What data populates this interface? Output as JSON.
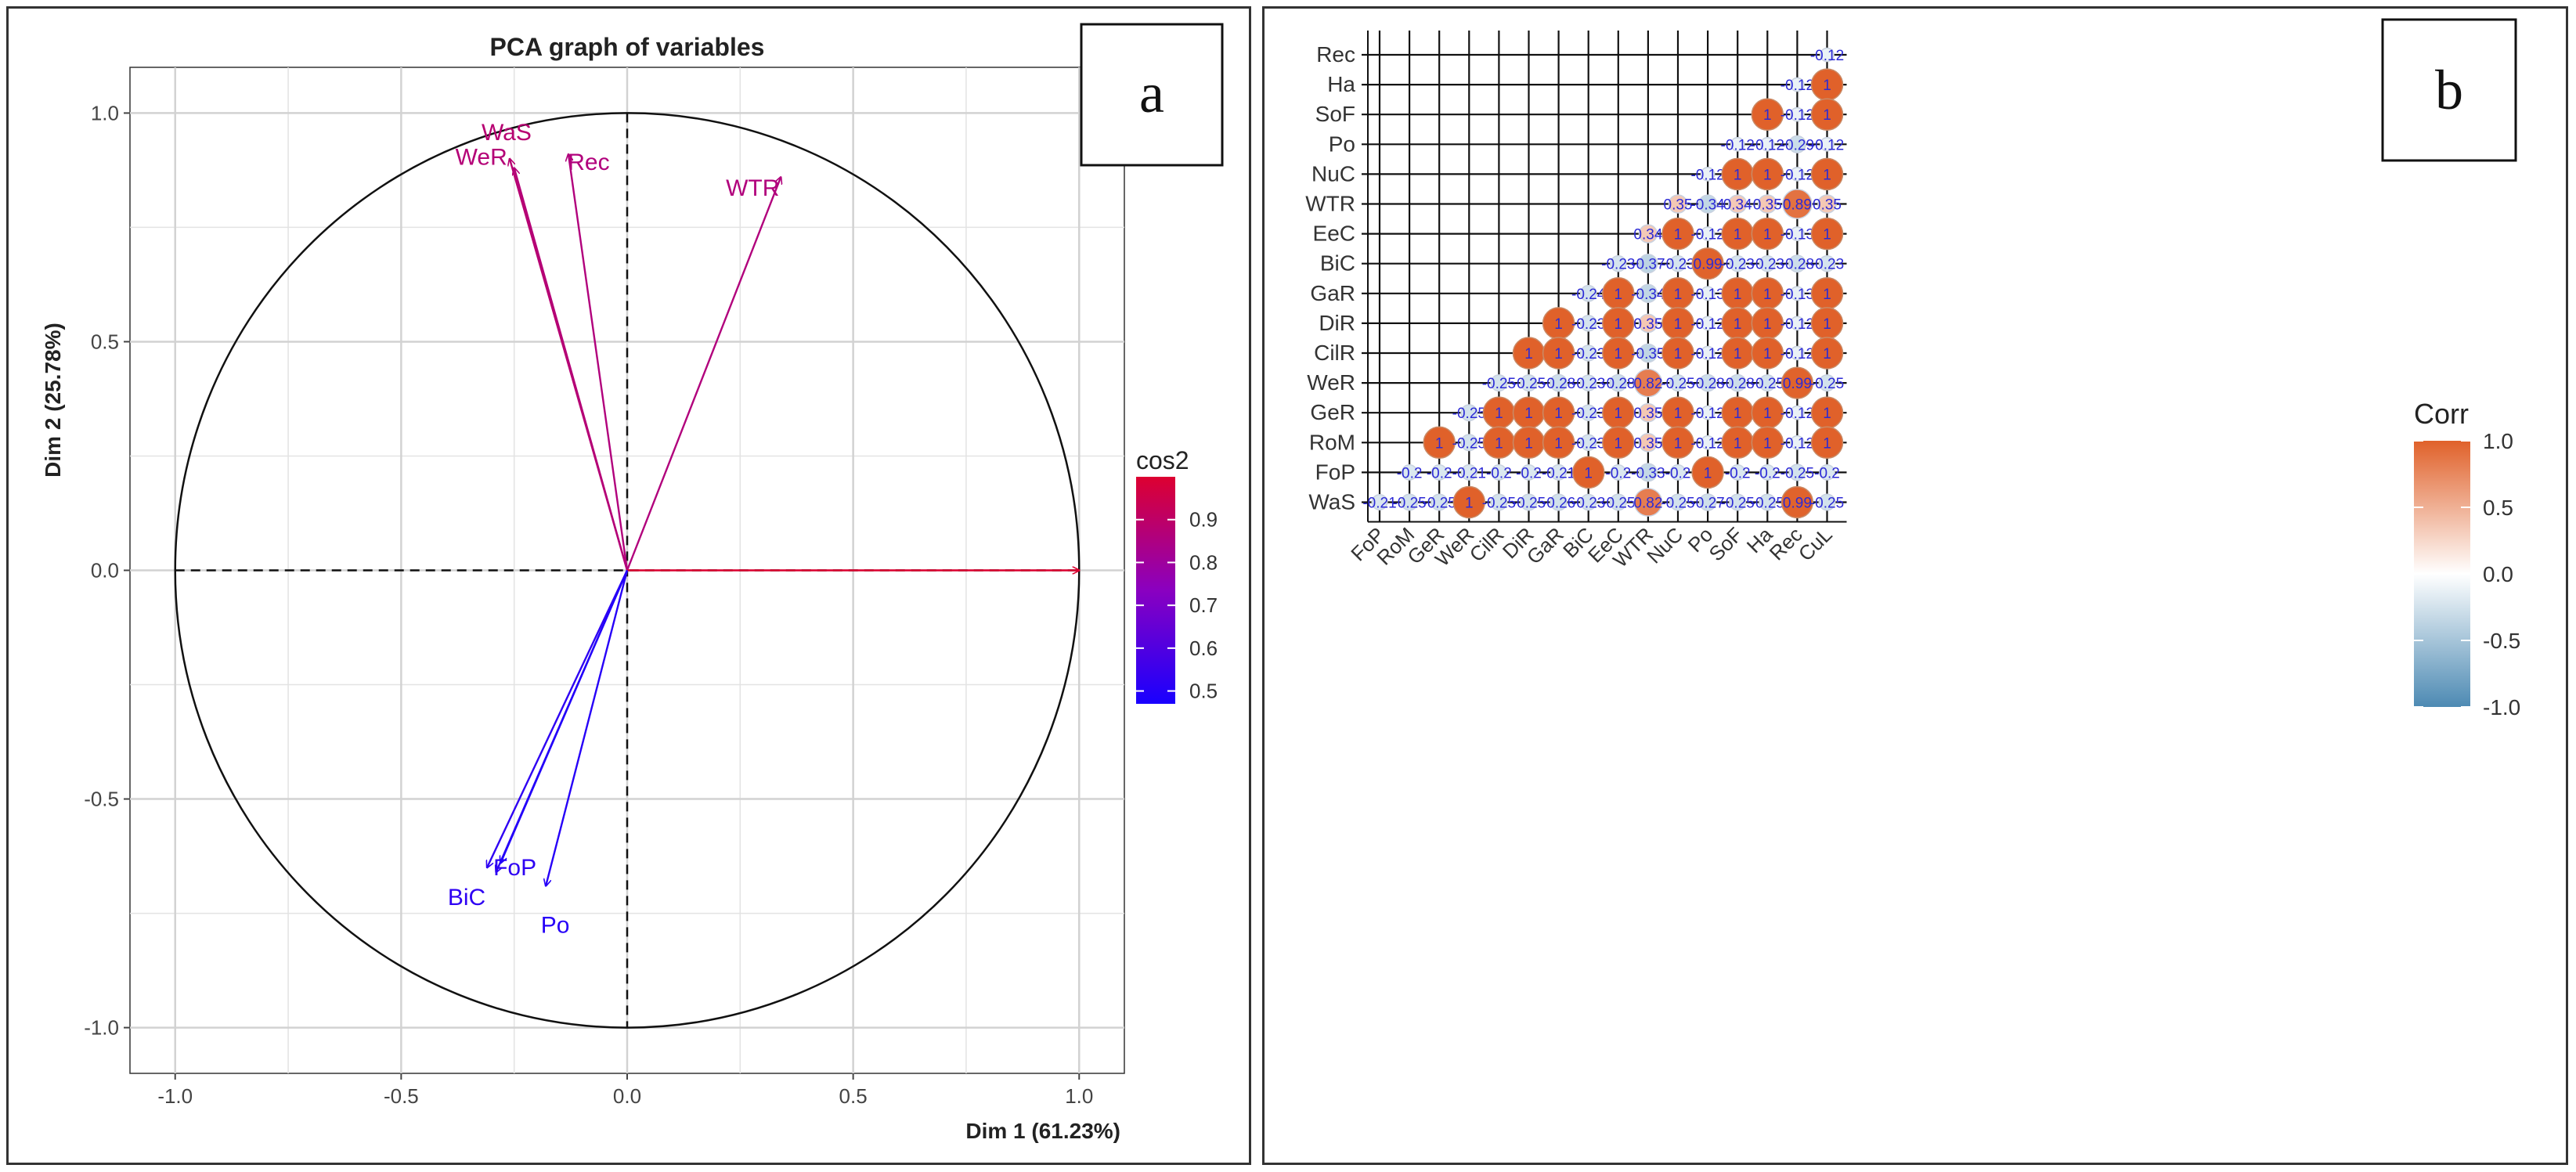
{
  "panels": {
    "a": {
      "label": "a"
    },
    "b": {
      "label": "b"
    }
  },
  "chart_data": [
    {
      "type": "scatter",
      "subtype": "pca-variables-correlation-circle",
      "title": "PCA graph of variables",
      "xlabel": "Dim 1 (61.23%)",
      "ylabel": "Dim 2 (25.78%)",
      "xlim": [
        -1.1,
        1.1
      ],
      "ylim": [
        -1.1,
        1.1
      ],
      "x_ticks": [
        -1.0,
        -0.5,
        0.0,
        0.5,
        1.0
      ],
      "y_ticks": [
        -1.0,
        -0.5,
        0.0,
        0.5,
        1.0
      ],
      "x_tick_labels": [
        "-1.0",
        "-0.5",
        "0.0",
        "0.5",
        "1.0"
      ],
      "y_tick_labels": [
        "-1.0",
        "-0.5",
        "0.0",
        "0.5",
        "1.0"
      ],
      "grid": true,
      "legend": {
        "title": "cos2",
        "position": "right",
        "range": [
          0.47,
          1.0
        ],
        "ticks": [
          0.5,
          0.6,
          0.7,
          0.8,
          0.9
        ],
        "tick_labels": [
          "0.5",
          "0.6",
          "0.7",
          "0.8",
          "0.9"
        ],
        "color_low": "#1900ff",
        "color_mid": "#8a00c0",
        "color_high": "#dd0030"
      },
      "vectors": [
        {
          "name": "WaS",
          "x": -0.26,
          "y": 0.9,
          "cos2": 0.88,
          "label": "WaS"
        },
        {
          "name": "WeR",
          "x": -0.25,
          "y": 0.88,
          "cos2": 0.87,
          "label": "WeR"
        },
        {
          "name": "Rec",
          "x": -0.13,
          "y": 0.91,
          "cos2": 0.86,
          "label": "Rec"
        },
        {
          "name": "WTR",
          "x": 0.34,
          "y": 0.86,
          "cos2": 0.86,
          "label": "WTR"
        },
        {
          "name": "Dim1 variables",
          "x": 1.0,
          "y": 0.0,
          "cos2": 1.0,
          "label": ""
        },
        {
          "name": "BiC",
          "x": -0.31,
          "y": -0.65,
          "cos2": 0.52,
          "label": "BiC"
        },
        {
          "name": "FoP",
          "x": -0.29,
          "y": -0.66,
          "cos2": 0.52,
          "label": "FoP"
        },
        {
          "name": "FoP2",
          "x": -0.28,
          "y": -0.64,
          "cos2": 0.49,
          "label": ""
        },
        {
          "name": "Po",
          "x": -0.18,
          "y": -0.69,
          "cos2": 0.5,
          "label": "Po"
        }
      ]
    },
    {
      "type": "heatmap",
      "subtype": "correlation-matrix-circles",
      "legend": {
        "title": "Corr",
        "position": "right",
        "ticks": [
          1.0,
          0.5,
          0.0,
          -0.5,
          -1.0
        ],
        "tick_labels": [
          "1.0",
          "0.5",
          "0.0",
          "-0.5",
          "-1.0"
        ],
        "color_pos": "#e0612a",
        "color_neutral": "#ffffff",
        "color_neg": "#4d8ab3"
      },
      "x_labels": [
        "FoP",
        "RoM",
        "GeR",
        "WeR",
        "CilR",
        "DiR",
        "GaR",
        "BiC",
        "EeC",
        "WTR",
        "NuC",
        "Po",
        "SoF",
        "Ha",
        "Rec",
        "CuL"
      ],
      "y_labels": [
        "Rec",
        "Ha",
        "SoF",
        "Po",
        "NuC",
        "WTR",
        "EeC",
        "BiC",
        "GaR",
        "DiR",
        "CilR",
        "WeR",
        "GeR",
        "RoM",
        "FoP",
        "WaS"
      ],
      "rows": [
        {
          "name": "Rec",
          "values": [
            -0.12
          ]
        },
        {
          "name": "Ha",
          "values": [
            -0.12,
            1
          ]
        },
        {
          "name": "SoF",
          "values": [
            1,
            -0.12,
            1
          ]
        },
        {
          "name": "Po",
          "values": [
            -0.12,
            -0.12,
            -0.29,
            -0.12
          ]
        },
        {
          "name": "NuC",
          "values": [
            -0.12,
            1,
            1,
            -0.12,
            1
          ]
        },
        {
          "name": "WTR",
          "values": [
            0.35,
            -0.34,
            0.34,
            0.35,
            0.89,
            0.35
          ]
        },
        {
          "name": "EeC",
          "values": [
            0.34,
            1,
            -0.12,
            1,
            1,
            -0.13,
            1
          ]
        },
        {
          "name": "BiC",
          "values": [
            -0.23,
            -0.37,
            -0.23,
            0.99,
            -0.23,
            -0.23,
            -0.28,
            -0.23
          ]
        },
        {
          "name": "GaR",
          "values": [
            -0.24,
            1,
            -0.34,
            1,
            -0.13,
            1,
            1,
            -0.13,
            1
          ]
        },
        {
          "name": "DiR",
          "values": [
            1,
            -0.23,
            1,
            0.35,
            1,
            -0.12,
            1,
            1,
            -0.12,
            1
          ]
        },
        {
          "name": "CilR",
          "values": [
            1,
            1,
            -0.23,
            1,
            -0.35,
            1,
            -0.12,
            1,
            1,
            -0.12,
            1
          ]
        },
        {
          "name": "WeR",
          "values": [
            -0.25,
            -0.25,
            -0.28,
            -0.23,
            -0.28,
            0.82,
            -0.25,
            -0.28,
            -0.28,
            -0.25,
            0.99,
            -0.25
          ]
        },
        {
          "name": "GeR",
          "values": [
            -0.25,
            1,
            1,
            1,
            -0.23,
            1,
            0.35,
            1,
            -0.12,
            1,
            1,
            -0.12,
            1
          ]
        },
        {
          "name": "RoM",
          "values": [
            1,
            -0.25,
            1,
            1,
            1,
            -0.23,
            1,
            0.35,
            1,
            -0.12,
            1,
            1,
            -0.12,
            1
          ]
        },
        {
          "name": "FoP",
          "values": [
            -0.2,
            -0.2,
            -0.21,
            -0.2,
            -0.2,
            -0.21,
            1,
            -0.2,
            -0.33,
            -0.2,
            1,
            -0.2,
            -0.2,
            -0.25,
            -0.2
          ]
        },
        {
          "name": "WaS",
          "values": [
            -0.21,
            -0.25,
            -0.25,
            1,
            -0.25,
            -0.25,
            -0.26,
            -0.23,
            -0.25,
            0.82,
            -0.25,
            -0.27,
            -0.25,
            -0.25,
            0.99,
            -0.25
          ]
        }
      ]
    }
  ]
}
